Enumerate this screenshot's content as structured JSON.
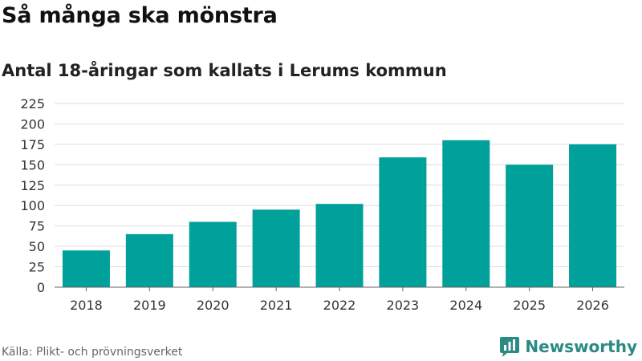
{
  "chart_data": {
    "type": "bar",
    "title": "Så många ska mönstra",
    "subtitle": "Antal 18-åringar som kallats i Lerums kommun",
    "categories": [
      "2018",
      "2019",
      "2020",
      "2021",
      "2022",
      "2023",
      "2024",
      "2025",
      "2026"
    ],
    "values": [
      45,
      65,
      80,
      95,
      102,
      159,
      180,
      150,
      175
    ],
    "ylim": [
      0,
      225
    ],
    "yticks": [
      0,
      25,
      50,
      75,
      100,
      125,
      150,
      175,
      200,
      225
    ],
    "grid": true,
    "bar_color": "#00a19a"
  },
  "footer": {
    "source": "Källa: Plikt- och prövningsverket",
    "brand": "Newsworthy"
  },
  "colors": {
    "brand": "#2a8a84",
    "grid": "#dddddd"
  },
  "icons": {
    "brand_logo": "bar-chart-bubble-icon"
  }
}
